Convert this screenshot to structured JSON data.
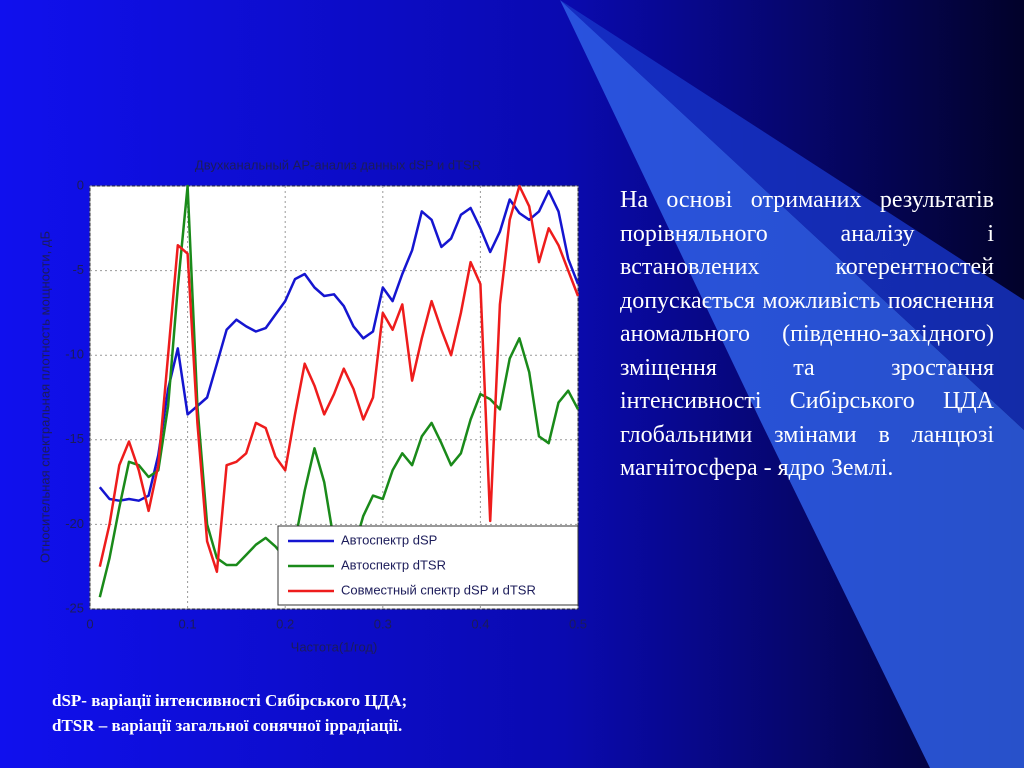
{
  "chart_data": {
    "type": "line",
    "title": "Двухканальный АР-анализ данных dSP и dTSR",
    "x_label": "Частота(1/год)",
    "y_label": "Относительная спектральная плотность мощности, дБ",
    "x": [
      0.01,
      0.02,
      0.03,
      0.04,
      0.05,
      0.06,
      0.07,
      0.08,
      0.09,
      0.1,
      0.11,
      0.12,
      0.13,
      0.14,
      0.15,
      0.16,
      0.17,
      0.18,
      0.19,
      0.2,
      0.21,
      0.22,
      0.23,
      0.24,
      0.25,
      0.26,
      0.27,
      0.28,
      0.29,
      0.3,
      0.31,
      0.32,
      0.33,
      0.34,
      0.35,
      0.36,
      0.37,
      0.38,
      0.39,
      0.4,
      0.41,
      0.42,
      0.43,
      0.44,
      0.45,
      0.46,
      0.47,
      0.48,
      0.49,
      0.5
    ],
    "series": [
      {
        "name": "Автоспектр dSP",
        "color": "#1515d0",
        "values": [
          -17.8,
          -18.5,
          -18.6,
          -18.5,
          -18.6,
          -18.3,
          -15.9,
          -12,
          -9.6,
          -13.5,
          -13,
          -12.5,
          -10.5,
          -8.5,
          -7.9,
          -8.3,
          -8.6,
          -8.4,
          -7.6,
          -6.8,
          -5.5,
          -5.2,
          -6,
          -6.5,
          -6.4,
          -7.1,
          -8.3,
          -9,
          -8.6,
          -6,
          -6.8,
          -5.2,
          -3.8,
          -1.5,
          -2,
          -3.6,
          -3.1,
          -1.7,
          -1.3,
          -2.5,
          -3.9,
          -2.7,
          -0.8,
          -1.6,
          -2,
          -1.5,
          -0.3,
          -1.5,
          -4.3,
          -5.8
        ]
      },
      {
        "name": "Автоспектр dTSR",
        "color": "#1a8a1a",
        "values": [
          -24.3,
          -22,
          -19,
          -16.3,
          -16.5,
          -17.2,
          -16.8,
          -13,
          -6,
          0,
          -13,
          -20,
          -22,
          -22.4,
          -22.4,
          -21.8,
          -21.2,
          -20.8,
          -21.3,
          -22,
          -21,
          -18,
          -15.5,
          -17.5,
          -21,
          -22.5,
          -21.5,
          -19.5,
          -18.3,
          -18.5,
          -16.8,
          -15.8,
          -16.5,
          -14.8,
          -14,
          -15.2,
          -16.5,
          -15.8,
          -13.8,
          -12.3,
          -12.6,
          -13.2,
          -10.2,
          -9,
          -11,
          -14.8,
          -15.2,
          -12.8,
          -12.1,
          -13.2
        ]
      },
      {
        "name": "Совместный спектр dSP и dTSR",
        "color": "#ee1c1c",
        "values": [
          -22.5,
          -20,
          -16.5,
          -15.1,
          -16.8,
          -19.2,
          -16.5,
          -10,
          -3.5,
          -4,
          -14,
          -21,
          -22.8,
          -16.5,
          -16.3,
          -15.8,
          -14,
          -14.3,
          -16,
          -16.8,
          -13.5,
          -10.5,
          -11.8,
          -13.5,
          -12.3,
          -10.8,
          -12,
          -13.8,
          -12.5,
          -7.5,
          -8.5,
          -7,
          -11.5,
          -9,
          -6.8,
          -8.5,
          -10,
          -7.5,
          -4.5,
          -5.8,
          -19.8,
          -7,
          -2,
          0,
          -1.2,
          -4.5,
          -2.5,
          -3.5,
          -5,
          -6.5
        ]
      }
    ],
    "xlim": [
      0,
      0.5
    ],
    "xticks": [
      0,
      0.1,
      0.2,
      0.3,
      0.4,
      0.5
    ],
    "ylim": [
      -25,
      0
    ],
    "yticks": [
      0,
      -5,
      -10,
      -15,
      -20,
      -25
    ],
    "grid": true,
    "legend": "lower right"
  },
  "note": "На основі отриманих результатів порівняльного аналізу і встановлених когерентностей допускається можливість пояснення аномального (південно-західного) зміщення та зростання інтенсивності Сибірського ЦДА глобальними змінами в ланцюзі магнітосфера - ядро Землі.",
  "caption": "dSP- варіації інтенсивності Сибірського ЦДА;\ndTSR – варіації загальної сонячної іррадіації."
}
